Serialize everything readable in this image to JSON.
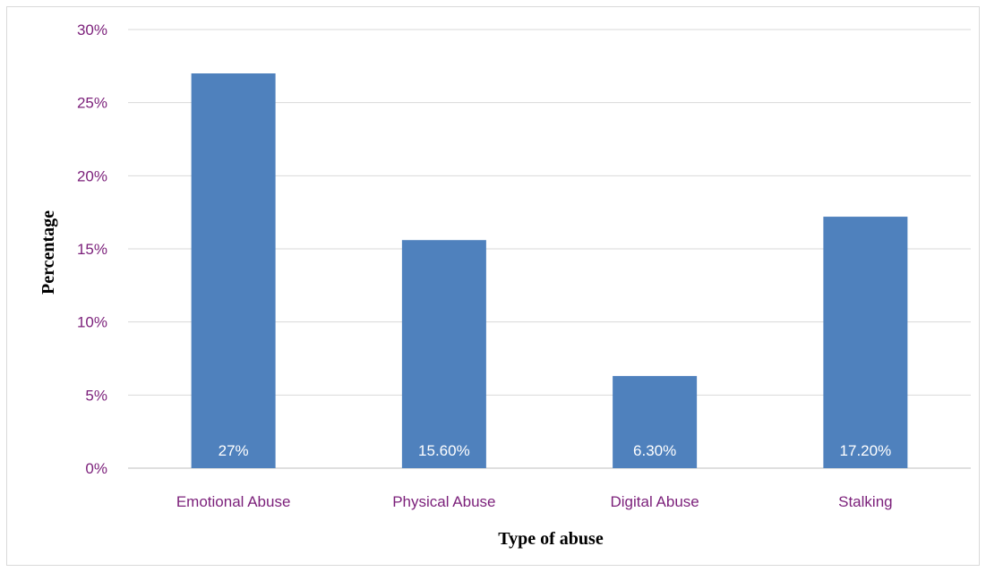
{
  "chart_data": {
    "type": "bar",
    "categories": [
      "Emotional Abuse",
      "Physical Abuse",
      "Digital Abuse",
      "Stalking"
    ],
    "values": [
      27,
      15.6,
      6.3,
      17.2
    ],
    "data_labels": [
      "27%",
      "15.60%",
      "6.30%",
      "17.20%"
    ],
    "title": "",
    "xlabel": "Type of abuse",
    "ylabel": "Percentage",
    "ylim": [
      0,
      30
    ],
    "yticks": [
      0,
      5,
      10,
      15,
      20,
      25,
      30
    ],
    "ytick_labels": [
      "0%",
      "5%",
      "10%",
      "15%",
      "20%",
      "25%",
      "30%"
    ],
    "grid": true,
    "legend": "none",
    "colors": {
      "bar": "#4f81bd",
      "tick_text": "#7b1f7a",
      "data_label": "#ffffff"
    }
  }
}
